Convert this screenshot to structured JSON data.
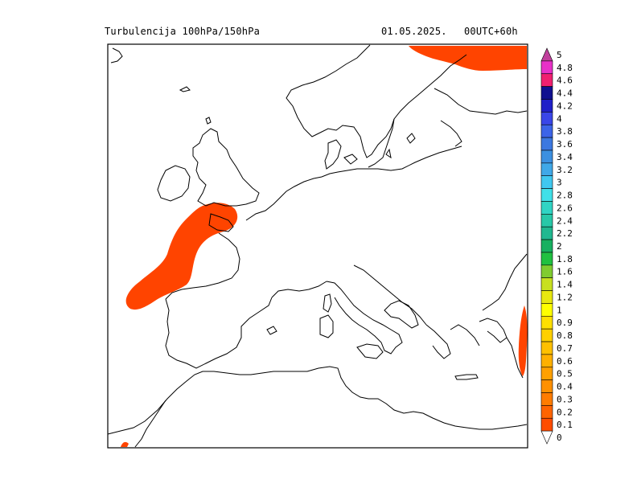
{
  "header": {
    "title": "Turbulencija 100hPa/150hPa",
    "date": "01.05.2025.",
    "run": "00UTC+60h"
  },
  "colorbar": {
    "bins": [
      {
        "label": "5",
        "color": "#c0409c"
      },
      {
        "label": "4.8",
        "color": "#e830c8"
      },
      {
        "label": "4.6",
        "color": "#f02070"
      },
      {
        "label": "4.4",
        "color": "#101090"
      },
      {
        "label": "4.2",
        "color": "#2020c8"
      },
      {
        "label": "4",
        "color": "#3a46e8"
      },
      {
        "label": "3.8",
        "color": "#3c64e8"
      },
      {
        "label": "3.6",
        "color": "#3c78e0"
      },
      {
        "label": "3.4",
        "color": "#3c90e0"
      },
      {
        "label": "3.2",
        "color": "#40a8e8"
      },
      {
        "label": "3",
        "color": "#40c8f0"
      },
      {
        "label": "2.8",
        "color": "#40e0e8"
      },
      {
        "label": "2.6",
        "color": "#30d4c4"
      },
      {
        "label": "2.4",
        "color": "#28c8a8"
      },
      {
        "label": "2.2",
        "color": "#20b890"
      },
      {
        "label": "2",
        "color": "#18b060"
      },
      {
        "label": "1.8",
        "color": "#20c040"
      },
      {
        "label": "1.6",
        "color": "#80cc30"
      },
      {
        "label": "1.4",
        "color": "#c8e020"
      },
      {
        "label": "1.2",
        "color": "#e8e810"
      },
      {
        "label": "1",
        "color": "#ffff00"
      },
      {
        "label": "0.9",
        "color": "#ffe000"
      },
      {
        "label": "0.8",
        "color": "#ffd000"
      },
      {
        "label": "0.7",
        "color": "#ffc000"
      },
      {
        "label": "0.6",
        "color": "#ffb000"
      },
      {
        "label": "0.5",
        "color": "#ffa000"
      },
      {
        "label": "0.4",
        "color": "#ff9000"
      },
      {
        "label": "0.3",
        "color": "#ff7c00"
      },
      {
        "label": "0.2",
        "color": "#ff6400"
      },
      {
        "label": "0.1",
        "color": "#ff4c00"
      },
      {
        "label": "0",
        "color": "#ffffff"
      }
    ]
  },
  "map": {
    "turbulence_fill_color": "#ff4400",
    "coastline_color": "#000000"
  }
}
